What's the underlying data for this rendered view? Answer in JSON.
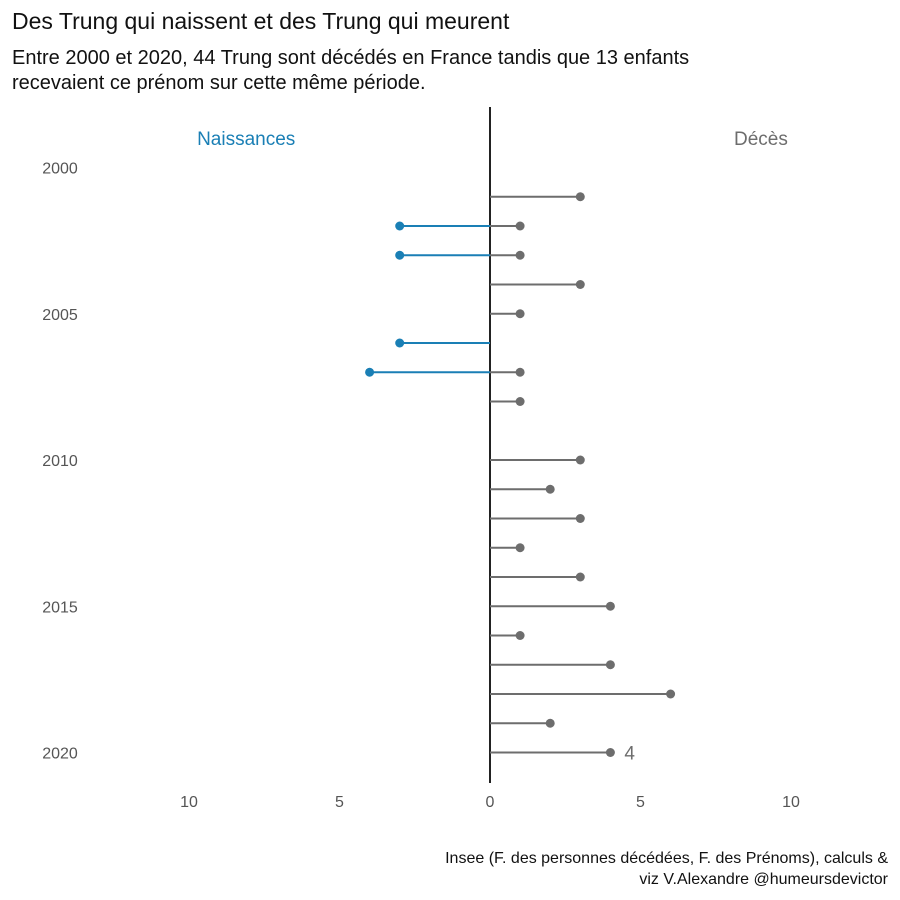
{
  "title": "Des Trung qui naissent et des Trung qui meurent",
  "subtitle": "Entre 2000 et 2020, 44 Trung sont décédés en France tandis que 13 enfants recevaient ce prénom sur cette même période.",
  "caption_line1": "Insee (F. des personnes décédées, F. des Prénoms), calculs &",
  "caption_line2": "viz V.Alexandre @humeursdevictor",
  "colors": {
    "births": "#1a7fb5",
    "deaths": "#6d6d6d",
    "axis": "#222222"
  },
  "chart_data": {
    "type": "lollipop",
    "left_label": "Naissances",
    "right_label": "Décès",
    "x_ticks": [
      {
        "value": -10,
        "label": "10"
      },
      {
        "value": -5,
        "label": "5"
      },
      {
        "value": 0,
        "label": "0"
      },
      {
        "value": 5,
        "label": "5"
      },
      {
        "value": 10,
        "label": "10"
      }
    ],
    "y_ticks": [
      2000,
      2005,
      2010,
      2015,
      2020
    ],
    "xlim": [
      -12.5,
      12.5
    ],
    "ylim": [
      2000,
      2020
    ],
    "series": [
      {
        "name": "Naissances",
        "points": [
          {
            "year": 2002,
            "value": 3
          },
          {
            "year": 2003,
            "value": 3
          },
          {
            "year": 2006,
            "value": 3
          },
          {
            "year": 2007,
            "value": 4
          }
        ]
      },
      {
        "name": "Décès",
        "points": [
          {
            "year": 2001,
            "value": 3
          },
          {
            "year": 2002,
            "value": 1
          },
          {
            "year": 2003,
            "value": 1
          },
          {
            "year": 2004,
            "value": 3
          },
          {
            "year": 2005,
            "value": 1
          },
          {
            "year": 2007,
            "value": 1
          },
          {
            "year": 2008,
            "value": 1
          },
          {
            "year": 2010,
            "value": 3
          },
          {
            "year": 2011,
            "value": 2
          },
          {
            "year": 2012,
            "value": 3
          },
          {
            "year": 2013,
            "value": 1
          },
          {
            "year": 2014,
            "value": 3
          },
          {
            "year": 2015,
            "value": 4
          },
          {
            "year": 2016,
            "value": 1
          },
          {
            "year": 2017,
            "value": 4
          },
          {
            "year": 2018,
            "value": 6
          },
          {
            "year": 2019,
            "value": 2
          },
          {
            "year": 2020,
            "value": 4
          }
        ]
      }
    ],
    "annotation": {
      "year": 2020,
      "text": "4"
    }
  }
}
